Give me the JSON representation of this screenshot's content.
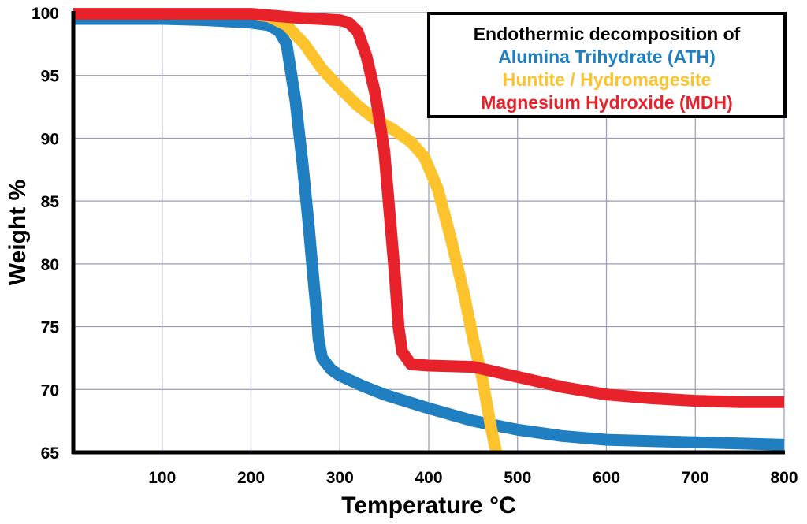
{
  "chart_data": {
    "type": "line",
    "title": "",
    "xlabel": "Temperature °C",
    "ylabel": "Weight  %",
    "xlim": [
      0,
      800
    ],
    "ylim": [
      65,
      100
    ],
    "x_ticks": [
      100,
      200,
      300,
      400,
      500,
      600,
      700,
      800
    ],
    "y_ticks": [
      65,
      70,
      75,
      80,
      85,
      90,
      95,
      100
    ],
    "grid": true,
    "legend": {
      "placement": "top-right",
      "heading": "Endothermic decomposition of"
    },
    "series": [
      {
        "name": "Alumina Trihydrate (ATH)",
        "color": "#1f7fc1",
        "points": [
          [
            0,
            99.5
          ],
          [
            100,
            99.5
          ],
          [
            150,
            99.4
          ],
          [
            200,
            99.2
          ],
          [
            220,
            99.0
          ],
          [
            232,
            98.5
          ],
          [
            240,
            97.5
          ],
          [
            250,
            93.0
          ],
          [
            258,
            88.0
          ],
          [
            265,
            83.0
          ],
          [
            270,
            79.0
          ],
          [
            274,
            76.0
          ],
          [
            276,
            74.0
          ],
          [
            280,
            72.5
          ],
          [
            290,
            71.6
          ],
          [
            300,
            71.1
          ],
          [
            325,
            70.3
          ],
          [
            350,
            69.6
          ],
          [
            400,
            68.5
          ],
          [
            450,
            67.5
          ],
          [
            500,
            66.8
          ],
          [
            550,
            66.3
          ],
          [
            600,
            66.0
          ],
          [
            650,
            65.9
          ],
          [
            700,
            65.8
          ],
          [
            800,
            65.6
          ]
        ]
      },
      {
        "name": "Huntite / Hydromagesite",
        "color": "#fdc32c",
        "points": [
          [
            0,
            99.9
          ],
          [
            200,
            99.9
          ],
          [
            220,
            99.7
          ],
          [
            240,
            99.0
          ],
          [
            260,
            97.5
          ],
          [
            280,
            95.5
          ],
          [
            300,
            94.0
          ],
          [
            320,
            92.6
          ],
          [
            340,
            91.5
          ],
          [
            360,
            90.7
          ],
          [
            380,
            89.7
          ],
          [
            395,
            88.5
          ],
          [
            410,
            86.0
          ],
          [
            425,
            82.0
          ],
          [
            440,
            77.5
          ],
          [
            450,
            74.0
          ],
          [
            460,
            71.0
          ],
          [
            465,
            69.0
          ],
          [
            470,
            67.0
          ],
          [
            476,
            65.0
          ]
        ]
      },
      {
        "name": "Magnesium Hydroxide (MDH)",
        "color": "#e8222b",
        "points": [
          [
            0,
            99.9
          ],
          [
            200,
            99.9
          ],
          [
            250,
            99.6
          ],
          [
            300,
            99.4
          ],
          [
            310,
            99.2
          ],
          [
            320,
            98.5
          ],
          [
            330,
            96.5
          ],
          [
            340,
            93.5
          ],
          [
            350,
            89.0
          ],
          [
            356,
            84.0
          ],
          [
            362,
            79.0
          ],
          [
            366,
            75.0
          ],
          [
            370,
            73.0
          ],
          [
            380,
            72.0
          ],
          [
            400,
            71.9
          ],
          [
            450,
            71.8
          ],
          [
            500,
            71.0
          ],
          [
            550,
            70.2
          ],
          [
            600,
            69.6
          ],
          [
            650,
            69.3
          ],
          [
            700,
            69.1
          ],
          [
            750,
            69.0
          ],
          [
            800,
            69.0
          ]
        ]
      }
    ]
  }
}
